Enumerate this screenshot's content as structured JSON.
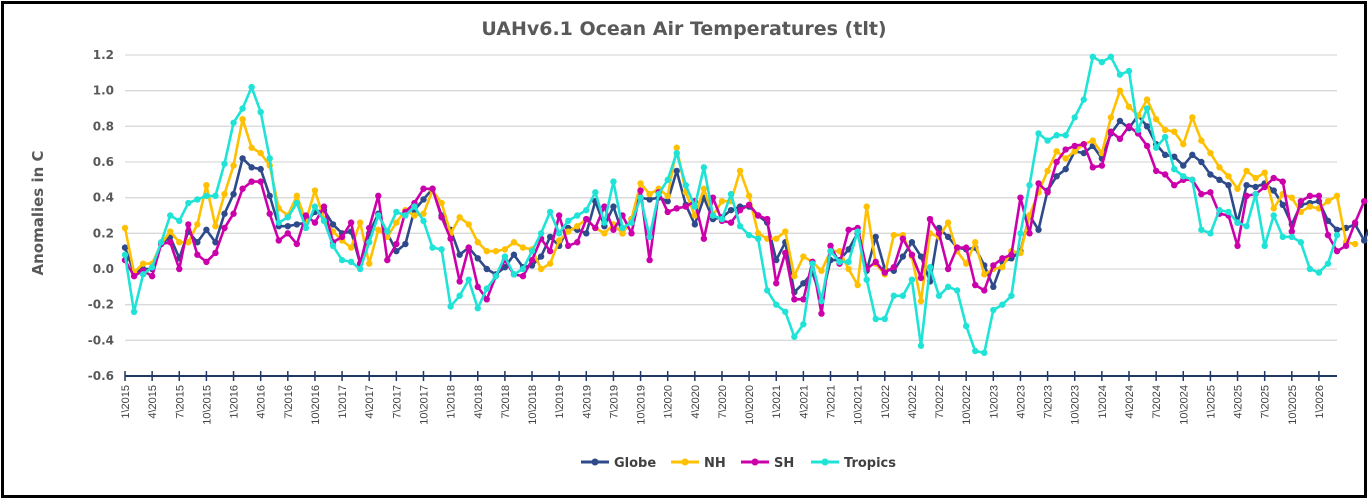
{
  "chart_data": {
    "type": "line",
    "title": "UAHv6.1 Ocean Air Temperatures (tlt)",
    "xlabel": "",
    "ylabel": "Anomalies in C",
    "ylim": [
      -0.6,
      1.2
    ],
    "yticks": [
      -0.6,
      -0.4,
      -0.2,
      0.0,
      0.2,
      0.4,
      0.6,
      0.8,
      1.0,
      1.2
    ],
    "ytick_labels": [
      "-0.6",
      "-0.4",
      "-0.2",
      "0.0",
      "0.2",
      "0.4",
      "0.6",
      "0.8",
      "1.0",
      "1.2"
    ],
    "grid": true,
    "legend_position": "bottom",
    "x_start": "1\\2015",
    "x_tick_labels": [
      "1\\2015",
      "4\\2015",
      "7\\2015",
      "10\\2015",
      "1\\2016",
      "4\\2016",
      "7\\2016",
      "10\\2016",
      "1\\2017",
      "4\\2017",
      "7\\2017",
      "10\\2017",
      "1\\2018",
      "4\\2018",
      "7\\2018",
      "10\\2018",
      "1\\2019",
      "4\\2019",
      "7\\2019",
      "10\\2019",
      "1\\2020",
      "4\\2020",
      "7\\2020",
      "10\\2020",
      "1\\2021",
      "4\\2021",
      "7\\2021",
      "10\\2021",
      "1\\2022",
      "4\\2022",
      "7\\2022",
      "10\\2022",
      "1\\2023",
      "4\\2023",
      "7\\2023",
      "10\\2023",
      "1\\2024",
      "4\\2024",
      "7\\2024",
      "10\\2024",
      "1\\2025",
      "4\\2025",
      "7\\2025",
      "10\\2025",
      "1\\2026"
    ],
    "x_tick_every_months": 3,
    "num_months": 135,
    "series": [
      {
        "name": "Globe",
        "color": "#2e4a8a",
        "values": [
          0.12,
          -0.02,
          0.0,
          0.0,
          0.14,
          0.18,
          0.06,
          0.21,
          0.15,
          0.22,
          0.15,
          0.31,
          0.42,
          0.62,
          0.57,
          0.56,
          0.41,
          0.24,
          0.24,
          0.25,
          0.26,
          0.32,
          0.33,
          0.25,
          0.2,
          0.21,
          0.03,
          0.2,
          0.31,
          0.2,
          0.1,
          0.14,
          0.33,
          0.39,
          0.45,
          0.3,
          0.22,
          0.08,
          0.12,
          0.06,
          0.0,
          -0.03,
          0.01,
          0.08,
          0.01,
          0.02,
          0.07,
          0.18,
          0.13,
          0.23,
          0.22,
          0.2,
          0.38,
          0.24,
          0.35,
          0.2,
          0.28,
          0.4,
          0.39,
          0.4,
          0.38,
          0.55,
          0.36,
          0.25,
          0.4,
          0.28,
          0.29,
          0.33,
          0.35,
          0.35,
          0.3,
          0.26,
          0.05,
          0.15,
          -0.13,
          -0.08,
          -0.02,
          -0.17,
          0.05,
          0.05,
          0.11,
          0.2,
          -0.01,
          0.18,
          0.0,
          -0.01,
          0.07,
          0.15,
          0.07,
          -0.07,
          0.23,
          0.18,
          0.12,
          0.11,
          0.12,
          0.02,
          -0.1,
          0.04,
          0.06,
          0.1,
          0.3,
          0.22,
          0.44,
          0.52,
          0.56,
          0.66,
          0.65,
          0.69,
          0.62,
          0.76,
          0.83,
          0.79,
          0.86,
          0.8,
          0.7,
          0.64,
          0.63,
          0.58,
          0.64,
          0.6,
          0.53,
          0.5,
          0.47,
          0.26,
          0.47,
          0.46,
          0.48,
          0.44,
          0.36,
          0.25,
          0.36,
          0.37,
          0.38,
          0.27,
          0.22,
          0.23,
          0.25,
          0.16,
          0.28
        ]
      },
      {
        "name": "NH",
        "color": "#ffc000",
        "values": [
          0.23,
          -0.02,
          0.03,
          0.03,
          0.14,
          0.21,
          0.15,
          0.15,
          0.25,
          0.47,
          0.24,
          0.42,
          0.58,
          0.84,
          0.68,
          0.65,
          0.58,
          0.34,
          0.3,
          0.41,
          0.27,
          0.44,
          0.28,
          0.21,
          0.16,
          0.12,
          0.26,
          0.03,
          0.22,
          0.18,
          0.26,
          0.33,
          0.3,
          0.31,
          0.44,
          0.37,
          0.2,
          0.29,
          0.25,
          0.15,
          0.1,
          0.1,
          0.11,
          0.15,
          0.12,
          0.11,
          0.0,
          0.03,
          0.16,
          0.21,
          0.24,
          0.28,
          0.23,
          0.2,
          0.25,
          0.2,
          0.28,
          0.48,
          0.42,
          0.45,
          0.41,
          0.68,
          0.43,
          0.3,
          0.45,
          0.3,
          0.38,
          0.38,
          0.55,
          0.41,
          0.2,
          0.17,
          0.17,
          0.21,
          -0.04,
          0.07,
          0.04,
          -0.01,
          0.1,
          0.1,
          0.0,
          -0.09,
          0.35,
          0.03,
          -0.03,
          0.19,
          0.19,
          0.07,
          -0.18,
          0.2,
          0.18,
          0.26,
          0.1,
          0.03,
          0.15,
          -0.03,
          0.0,
          0.01,
          0.1,
          0.09,
          0.3,
          0.43,
          0.55,
          0.66,
          0.62,
          0.66,
          0.7,
          0.72,
          0.65,
          0.85,
          1.0,
          0.91,
          0.86,
          0.95,
          0.84,
          0.78,
          0.77,
          0.7,
          0.85,
          0.72,
          0.65,
          0.57,
          0.52,
          0.45,
          0.55,
          0.51,
          0.54,
          0.34,
          0.42,
          0.4,
          0.32,
          0.35,
          0.34,
          0.38,
          0.41,
          0.15,
          0.14
        ]
      },
      {
        "name": "SH",
        "color": "#cc00aa",
        "values": [
          0.05,
          -0.04,
          -0.01,
          -0.04,
          0.14,
          0.15,
          0.0,
          0.25,
          0.08,
          0.04,
          0.09,
          0.23,
          0.31,
          0.45,
          0.49,
          0.49,
          0.31,
          0.16,
          0.2,
          0.14,
          0.3,
          0.26,
          0.35,
          0.15,
          0.18,
          0.26,
          0.03,
          0.23,
          0.41,
          0.05,
          0.14,
          0.32,
          0.37,
          0.45,
          0.45,
          0.29,
          0.17,
          -0.07,
          0.12,
          -0.1,
          -0.17,
          -0.04,
          0.05,
          -0.03,
          -0.04,
          0.05,
          0.17,
          0.1,
          0.3,
          0.13,
          0.15,
          0.28,
          0.23,
          0.35,
          0.22,
          0.3,
          0.2,
          0.44,
          0.05,
          0.43,
          0.32,
          0.34,
          0.35,
          0.38,
          0.17,
          0.4,
          0.27,
          0.26,
          0.33,
          0.36,
          0.3,
          0.28,
          -0.08,
          0.09,
          -0.17,
          -0.17,
          0.04,
          -0.25,
          0.13,
          0.03,
          0.22,
          0.23,
          0.0,
          0.04,
          -0.02,
          0.01,
          0.17,
          0.08,
          -0.05,
          0.28,
          0.2,
          0.0,
          0.12,
          0.12,
          -0.09,
          -0.12,
          0.02,
          0.06,
          0.08,
          0.4,
          0.2,
          0.48,
          0.43,
          0.6,
          0.67,
          0.69,
          0.7,
          0.57,
          0.58,
          0.77,
          0.73,
          0.8,
          0.76,
          0.69,
          0.55,
          0.53,
          0.47,
          0.5,
          0.5,
          0.42,
          0.43,
          0.31,
          0.3,
          0.13,
          0.41,
          0.42,
          0.46,
          0.51,
          0.49,
          0.21,
          0.38,
          0.41,
          0.41,
          0.19,
          0.1,
          0.13,
          0.26,
          0.38
        ]
      },
      {
        "name": "Tropics",
        "color": "#1ee3d6",
        "values": [
          0.08,
          -0.24,
          -0.03,
          0.01,
          0.15,
          0.3,
          0.27,
          0.37,
          0.39,
          0.41,
          0.41,
          0.59,
          0.82,
          0.9,
          1.02,
          0.88,
          0.62,
          0.26,
          0.29,
          0.37,
          0.23,
          0.35,
          0.27,
          0.13,
          0.05,
          0.04,
          0.0,
          0.15,
          0.3,
          0.21,
          0.32,
          0.3,
          0.35,
          0.27,
          0.12,
          0.11,
          -0.21,
          -0.15,
          -0.06,
          -0.22,
          -0.11,
          -0.04,
          0.07,
          -0.03,
          0.0,
          0.1,
          0.2,
          0.32,
          0.2,
          0.27,
          0.3,
          0.33,
          0.43,
          0.26,
          0.49,
          0.23,
          0.26,
          0.4,
          0.18,
          0.42,
          0.5,
          0.65,
          0.47,
          0.35,
          0.57,
          0.3,
          0.28,
          0.42,
          0.24,
          0.19,
          0.17,
          -0.12,
          -0.2,
          -0.24,
          -0.38,
          -0.31,
          0.03,
          -0.18,
          0.1,
          0.04,
          0.04,
          0.21,
          -0.06,
          -0.28,
          -0.28,
          -0.15,
          -0.15,
          -0.06,
          -0.43,
          0.01,
          -0.15,
          -0.1,
          -0.12,
          -0.32,
          -0.46,
          -0.47,
          -0.23,
          -0.2,
          -0.15,
          0.2,
          0.47,
          0.76,
          0.72,
          0.75,
          0.75,
          0.85,
          0.95,
          1.19,
          1.16,
          1.19,
          1.09,
          1.11,
          0.78,
          0.9,
          0.68,
          0.74,
          0.56,
          0.52,
          0.5,
          0.22,
          0.2,
          0.33,
          0.32,
          0.26,
          0.24,
          0.42,
          0.13,
          0.3,
          0.18,
          0.18,
          0.15,
          0.0,
          -0.02,
          0.03,
          0.19
        ]
      }
    ]
  }
}
